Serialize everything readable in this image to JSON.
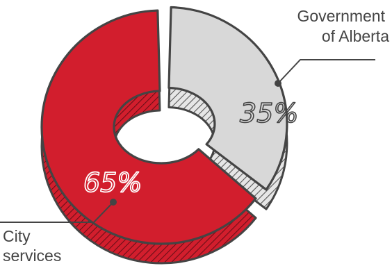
{
  "chart_data": {
    "type": "pie",
    "categories": [
      "City services",
      "Government of Alberta"
    ],
    "values": [
      65,
      35
    ],
    "labels": [
      "65%",
      "35%"
    ],
    "legend": [
      "City services",
      "Government of Alberta"
    ]
  },
  "legend_text": {
    "gov_line1": "Government",
    "gov_line2": "of Alberta",
    "city_line1": "City",
    "city_line2": "services"
  },
  "colors": {
    "city": "#d21e2d",
    "city_dark": "#8e1520",
    "gov": "#d8d8d8",
    "gov_dark": "#6e6e6e",
    "outline": "#444444"
  }
}
